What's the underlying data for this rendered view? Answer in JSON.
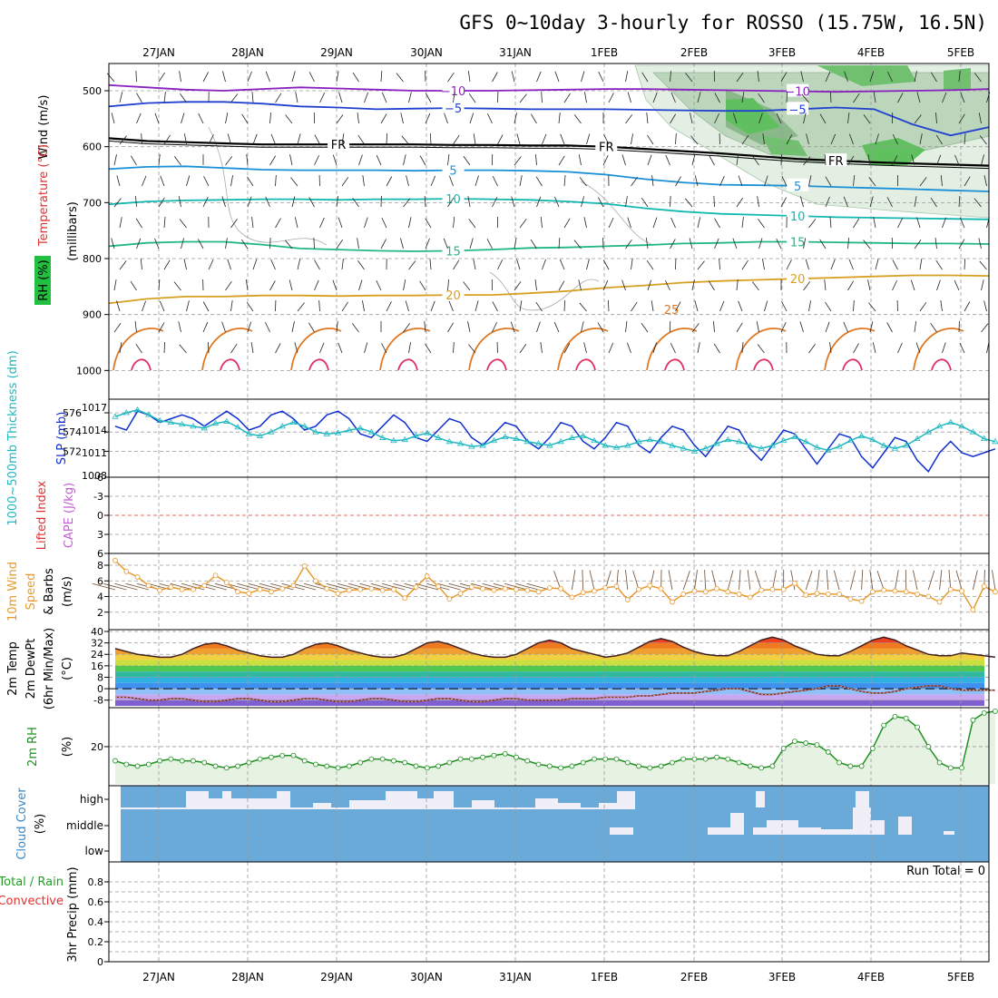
{
  "title": "GFS 0~10day 3-hourly for ROSSO (15.75W, 16.5N)",
  "dates": [
    "27JAN",
    "28JAN",
    "29JAN",
    "30JAN",
    "31JAN",
    "1FEB",
    "2FEB",
    "3FEB",
    "4FEB",
    "5FEB"
  ],
  "colors": {
    "temp_cold": "#8a1fc0",
    "temp_m5": "#2040d0",
    "temp_fr": "#000000",
    "temp_5": "#1a90d8",
    "temp_10": "#10b8b0",
    "temp_15": "#20b880",
    "temp_20": "#d8a020",
    "temp_25": "#e07820",
    "temp_30": "#e03060",
    "thickness": "#20b8c0",
    "slp": "#1030d0",
    "li": "#e03030",
    "wind": "#e89a30",
    "rh2m": "#209020",
    "cloud": "#6aaad8",
    "cloud_gap": "#f0eef6"
  },
  "panels": {
    "profile": {
      "ylabel_units": "(millibars)",
      "ylabel_wind": "Wind (m/s)",
      "ylabel_temp": "Temperature (°C)",
      "ylabel_rh": "RH (%)",
      "levels": [
        "500",
        "600",
        "700",
        "800",
        "900",
        "1000"
      ]
    },
    "thickness_slp": {
      "ylabel_left": "1000~500mb Thickness (dm)",
      "ylabel_right": "SLP (mb)",
      "ticks_left": [
        "576",
        "574",
        "572"
      ],
      "ticks_right": [
        "1017",
        "1014",
        "1011",
        "1008"
      ]
    },
    "li_cape": {
      "ylabel_left": "Lifted Index",
      "ylabel_right": "CAPE (J/kg)",
      "ticks": [
        "-6",
        "-3",
        "0",
        "3",
        "6"
      ]
    },
    "wind10m": {
      "ylabel1": "10m Wind",
      "ylabel2": "Speed",
      "ylabel3": "& Barbs",
      "ylabel_units": "(m/s)",
      "ticks": [
        "8",
        "6",
        "4",
        "2"
      ]
    },
    "temp2m": {
      "ylabel1": "2m Temp",
      "ylabel2": "2m DewPt",
      "ylabel3": "(6hr Min/Max)",
      "ylabel_units": "(°C)",
      "ticks": [
        "40",
        "32",
        "24",
        "16",
        "8",
        "0",
        "-8"
      ]
    },
    "rh2m": {
      "ylabel": "2m RH",
      "ylabel_units": "(%)",
      "ticks": [
        "20"
      ]
    },
    "cloud": {
      "ylabel": "Cloud Cover",
      "ylabel_units": "(%)",
      "levels": [
        "high",
        "middle",
        "low"
      ]
    },
    "precip": {
      "ylabel1": "Total / Rain",
      "ylabel2": "Convective",
      "ylabel_units": "3hr Precip (mm)",
      "ticks": [
        "0.8",
        "0.6",
        "0.4",
        "0.2",
        "0"
      ],
      "run_total": "Run Total = 0"
    }
  },
  "chart_data": {
    "type": "line",
    "x_step_hours": 3,
    "n_steps": 80,
    "temperature_contours": {
      "levels_labeled": [
        "-10",
        "-5",
        "FR",
        "5",
        "10",
        "15",
        "20",
        "25"
      ],
      "level_pressure_mb": [
        {
          "level": "-10",
          "p": [
            490,
            494,
            498,
            500,
            497,
            494,
            496,
            498,
            500,
            500,
            500,
            499,
            498,
            497,
            497,
            498,
            499,
            500,
            501,
            502,
            501,
            500,
            499,
            497
          ]
        },
        {
          "level": "-5",
          "p": [
            528,
            522,
            520,
            520,
            523,
            528,
            530,
            533,
            532,
            531,
            532,
            533,
            533,
            533,
            534,
            535,
            536,
            536,
            533,
            530,
            533,
            560,
            580,
            565
          ]
        },
        {
          "level": "FR",
          "p": [
            585,
            590,
            592,
            594,
            596,
            596,
            596,
            596,
            596,
            597,
            597,
            598,
            598,
            600,
            604,
            608,
            612,
            617,
            622,
            625,
            628,
            630,
            632,
            634
          ]
        },
        {
          "level": "5",
          "p": [
            640,
            636,
            635,
            638,
            641,
            642,
            642,
            642,
            643,
            642,
            642,
            643,
            645,
            650,
            658,
            664,
            668,
            669,
            670,
            672,
            674,
            676,
            678,
            680
          ]
        },
        {
          "level": "10",
          "p": [
            703,
            698,
            696,
            695,
            694,
            694,
            695,
            694,
            694,
            693,
            694,
            695,
            698,
            702,
            710,
            716,
            720,
            722,
            724,
            726,
            727,
            728,
            729,
            730
          ]
        },
        {
          "level": "15",
          "p": [
            778,
            772,
            770,
            770,
            775,
            782,
            784,
            786,
            787,
            786,
            784,
            781,
            780,
            778,
            776,
            773,
            772,
            770,
            770,
            771,
            772,
            773,
            773,
            774
          ]
        },
        {
          "level": "20",
          "p": [
            880,
            872,
            868,
            868,
            866,
            866,
            867,
            866,
            866,
            865,
            865,
            862,
            858,
            852,
            848,
            843,
            840,
            838,
            836,
            834,
            832,
            830,
            830,
            831
          ]
        }
      ]
    },
    "thickness_dm": [
      575.6,
      576.0,
      576.3,
      575.8,
      575.2,
      575.0,
      574.8,
      574.6,
      574.4,
      574.9,
      575.1,
      574.5,
      573.8,
      573.6,
      574.0,
      574.6,
      575.0,
      574.6,
      574.0,
      573.8,
      573.9,
      574.2,
      574.4,
      574.0,
      573.4,
      573.1,
      573.2,
      573.6,
      573.9,
      573.4,
      573.0,
      572.8,
      572.5,
      572.6,
      573.1,
      573.5,
      573.3,
      573.0,
      572.8,
      572.6,
      573.0,
      573.4,
      573.6,
      573.1,
      572.6,
      572.4,
      572.6,
      573.0,
      573.2,
      573.0,
      572.6,
      572.3,
      572.0,
      572.3,
      572.8,
      573.2,
      573.0,
      572.6,
      572.3,
      572.6,
      573.1,
      573.5,
      573.0,
      572.4,
      572.1,
      572.5,
      573.1,
      573.6,
      573.2,
      572.6,
      572.3,
      572.6,
      573.3,
      574.0,
      574.6,
      575.0,
      574.6,
      574.0,
      573.3,
      573.0
    ],
    "slp_mb": [
      1014.5,
      1014.0,
      1016.5,
      1016.0,
      1015.0,
      1015.5,
      1016.0,
      1015.5,
      1014.5,
      1015.5,
      1016.5,
      1015.5,
      1014.0,
      1014.5,
      1016.0,
      1016.5,
      1015.5,
      1014.0,
      1014.5,
      1016.0,
      1016.5,
      1015.5,
      1013.5,
      1013.0,
      1014.5,
      1016.0,
      1015.0,
      1013.0,
      1012.5,
      1014.0,
      1015.5,
      1015.0,
      1013.0,
      1012.0,
      1013.5,
      1015.0,
      1014.5,
      1012.5,
      1011.5,
      1013.0,
      1015.0,
      1014.5,
      1012.5,
      1011.5,
      1013.0,
      1015.0,
      1014.5,
      1012.0,
      1011.0,
      1013.0,
      1014.5,
      1014.0,
      1012.0,
      1010.5,
      1012.5,
      1014.5,
      1014.0,
      1011.5,
      1010.0,
      1012.0,
      1014.0,
      1013.5,
      1011.5,
      1009.5,
      1011.5,
      1013.5,
      1013.0,
      1010.5,
      1009.0,
      1011.0,
      1013.0,
      1012.5,
      1010.0,
      1008.5,
      1011.0,
      1012.5,
      1011.0,
      1010.5,
      1011.0,
      1011.5
    ],
    "lifted_index": [],
    "cape": [],
    "wind10m_speed": [
      8.6,
      7.2,
      6.5,
      5.4,
      4.8,
      5.2,
      4.9,
      4.9,
      5.4,
      6.7,
      5.8,
      4.6,
      4.4,
      4.9,
      4.6,
      5.0,
      5.4,
      7.9,
      6.0,
      5.0,
      4.4,
      4.8,
      4.9,
      5.0,
      4.8,
      4.9,
      3.8,
      5.2,
      6.6,
      5.3,
      3.7,
      4.4,
      5.2,
      5.0,
      4.8,
      5.0,
      4.9,
      4.8,
      4.6,
      5.1,
      5.0,
      3.9,
      4.5,
      4.7,
      5.1,
      5.3,
      3.6,
      4.9,
      5.4,
      5.0,
      3.3,
      4.3,
      4.7,
      4.6,
      5.0,
      4.6,
      4.3,
      3.9,
      4.8,
      4.9,
      4.9,
      5.7,
      4.2,
      4.4,
      4.3,
      4.3,
      3.7,
      3.4,
      4.6,
      4.8,
      4.7,
      4.6,
      4.3,
      4.0,
      3.3,
      4.9,
      4.7,
      2.3,
      5.3,
      4.6
    ],
    "temp2m_c": [
      28,
      26,
      24,
      23,
      22,
      22,
      24,
      28,
      31,
      32,
      30,
      27,
      25,
      23,
      22,
      22,
      24,
      28,
      31,
      32,
      30,
      27,
      25,
      23,
      22,
      22,
      24,
      28,
      32,
      33,
      31,
      28,
      25,
      23,
      22,
      22,
      24,
      28,
      32,
      34,
      32,
      28,
      26,
      24,
      22,
      23,
      25,
      29,
      33,
      35,
      33,
      29,
      26,
      24,
      23,
      23,
      26,
      30,
      34,
      36,
      34,
      30,
      27,
      24,
      23,
      23,
      26,
      30,
      34,
      36,
      34,
      30,
      27,
      24,
      23,
      23,
      25,
      24,
      23,
      22
    ],
    "dewpt2m_c": [
      -6,
      -6,
      -7,
      -8,
      -8,
      -7,
      -7,
      -8,
      -9,
      -9,
      -8,
      -7,
      -7,
      -8,
      -9,
      -9,
      -8,
      -7,
      -7,
      -8,
      -9,
      -9,
      -8,
      -7,
      -7,
      -8,
      -9,
      -9,
      -8,
      -7,
      -7,
      -8,
      -9,
      -9,
      -8,
      -7,
      -7,
      -8,
      -8,
      -8,
      -8,
      -7,
      -7,
      -7,
      -6,
      -6,
      -6,
      -5,
      -5,
      -4,
      -3,
      -3,
      -3,
      -2,
      -1,
      0,
      0,
      -2,
      -4,
      -4,
      -3,
      -2,
      -1,
      0,
      2,
      2,
      0,
      -2,
      -3,
      -3,
      -2,
      0,
      1,
      2,
      2,
      0,
      -1,
      -1,
      -1,
      -1
    ],
    "rh2m_pct": [
      12,
      10,
      9,
      10,
      12,
      13,
      12,
      12,
      11,
      9,
      8,
      9,
      11,
      13,
      14,
      15,
      15,
      12,
      10,
      9,
      8,
      9,
      11,
      13,
      13,
      12,
      11,
      9,
      8,
      9,
      11,
      13,
      13,
      14,
      15,
      16,
      14,
      12,
      10,
      9,
      8,
      9,
      11,
      13,
      13,
      13,
      11,
      9,
      8,
      9,
      11,
      13,
      13,
      13,
      14,
      13,
      11,
      9,
      8,
      9,
      19,
      23,
      22,
      21,
      17,
      11,
      9,
      9,
      19,
      32,
      37,
      36,
      31,
      20,
      11,
      8,
      8,
      35,
      39,
      40
    ],
    "cloud_high_pct": [
      0,
      0,
      0,
      0,
      0,
      0,
      0,
      0,
      0,
      0,
      0,
      0,
      0,
      0,
      0,
      0,
      0,
      0,
      0,
      0,
      0,
      0,
      0,
      0,
      0,
      0,
      0,
      0,
      0,
      0,
      0,
      0,
      0,
      0,
      0,
      0,
      0,
      0,
      0,
      0,
      0,
      0,
      0,
      0,
      0,
      0,
      0,
      0,
      0,
      0,
      0,
      0,
      0,
      0,
      0,
      0,
      0,
      0,
      0,
      0,
      0,
      0,
      0,
      0,
      0,
      0,
      0,
      0,
      0,
      0,
      0,
      0,
      0,
      0,
      0,
      0,
      0,
      0,
      0,
      0
    ],
    "precip_total_mm": [],
    "precip_convective_mm": [],
    "run_total": 0
  }
}
